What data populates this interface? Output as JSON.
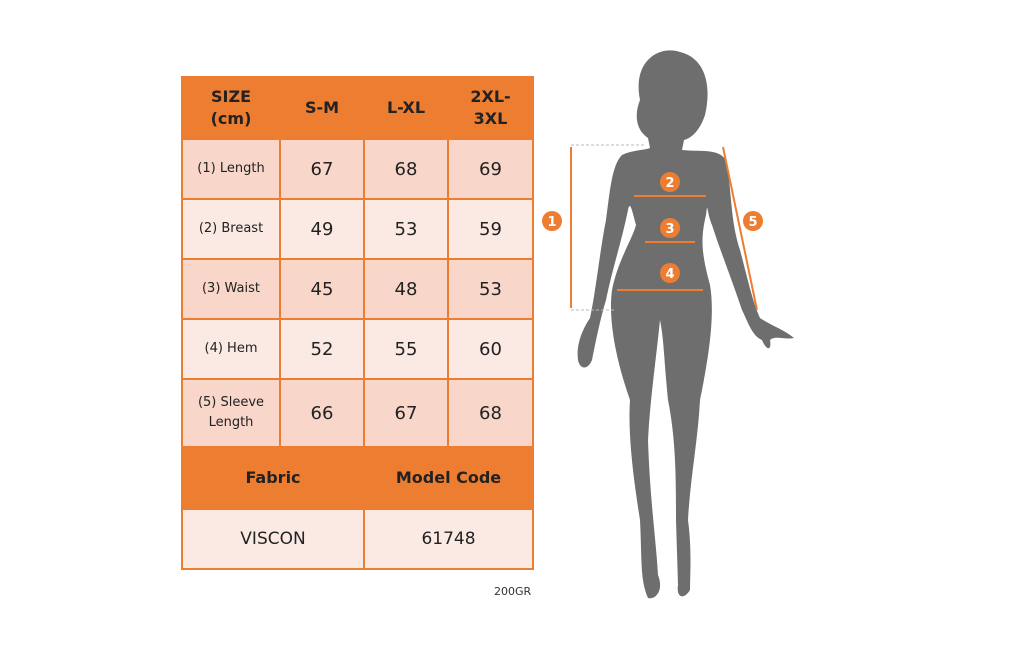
{
  "header": {
    "size": [
      "SIZE",
      "(cm)"
    ],
    "sizes": [
      "S-M",
      "L-XL",
      [
        "2XL-",
        "3XL"
      ]
    ]
  },
  "rows": [
    {
      "label": [
        "(1) Length"
      ],
      "values": [
        "67",
        "68",
        "69"
      ]
    },
    {
      "label": [
        "(2) Breast"
      ],
      "values": [
        "49",
        "53",
        "59"
      ]
    },
    {
      "label": [
        "(3) Waist"
      ],
      "values": [
        "45",
        "48",
        "53"
      ]
    },
    {
      "label": [
        "(4) Hem"
      ],
      "values": [
        "52",
        "55",
        "60"
      ]
    },
    {
      "label": [
        "(5) Sleeve",
        "Length"
      ],
      "values": [
        "66",
        "67",
        "68"
      ]
    }
  ],
  "fabric": {
    "label": "Fabric",
    "value": "VISCON"
  },
  "model_code": {
    "label": "Model Code",
    "value": "61748"
  },
  "weight_note": "200GR",
  "markers": [
    "1",
    "2",
    "3",
    "4",
    "5"
  ],
  "colors": {
    "accent": "#ED7D31",
    "row_dark": "#F8D6CA",
    "row_light": "#FBEAE4",
    "silhouette": "#6E6E6E"
  }
}
